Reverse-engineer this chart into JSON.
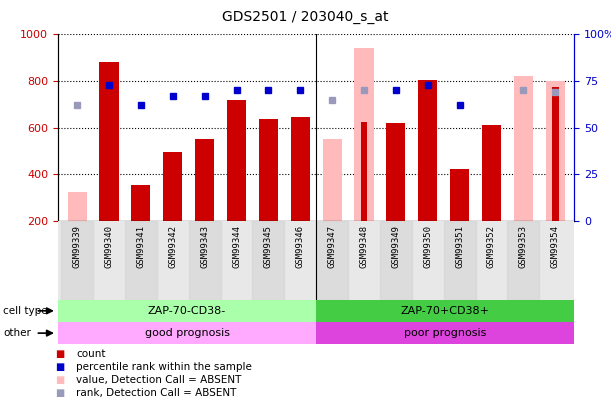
{
  "title": "GDS2501 / 203040_s_at",
  "samples": [
    "GSM99339",
    "GSM99340",
    "GSM99341",
    "GSM99342",
    "GSM99343",
    "GSM99344",
    "GSM99345",
    "GSM99346",
    "GSM99347",
    "GSM99348",
    "GSM99349",
    "GSM99350",
    "GSM99351",
    "GSM99352",
    "GSM99353",
    "GSM99354"
  ],
  "count_values": [
    200,
    880,
    355,
    495,
    550,
    720,
    635,
    645,
    200,
    625,
    620,
    805,
    420,
    610,
    200,
    775
  ],
  "count_absent": [
    325,
    0,
    0,
    0,
    0,
    0,
    0,
    0,
    550,
    940,
    0,
    0,
    0,
    0,
    820,
    800
  ],
  "rank_present": [
    0,
    73,
    62,
    67,
    67,
    70,
    70,
    70,
    0,
    0,
    70,
    73,
    62,
    0,
    0,
    68
  ],
  "rank_absent": [
    62,
    0,
    0,
    0,
    0,
    0,
    0,
    0,
    65,
    70,
    0,
    0,
    0,
    0,
    70,
    69
  ],
  "is_absent": [
    true,
    false,
    false,
    false,
    false,
    false,
    false,
    false,
    true,
    true,
    false,
    false,
    false,
    false,
    true,
    true
  ],
  "ylim_left": [
    200,
    1000
  ],
  "ylim_right": [
    0,
    100
  ],
  "bar_color_present": "#cc0000",
  "bar_color_absent": "#ffbbbb",
  "rank_color_present": "#0000cc",
  "rank_color_absent": "#9999bb",
  "cell_type_color_1": "#aaffaa",
  "cell_type_color_2": "#44cc44",
  "prognosis_color_1": "#ffaaff",
  "prognosis_color_2": "#dd44dd",
  "bg_color": "#e8e8e8",
  "title_fontsize": 10,
  "tick_label_fontsize": 6.5
}
